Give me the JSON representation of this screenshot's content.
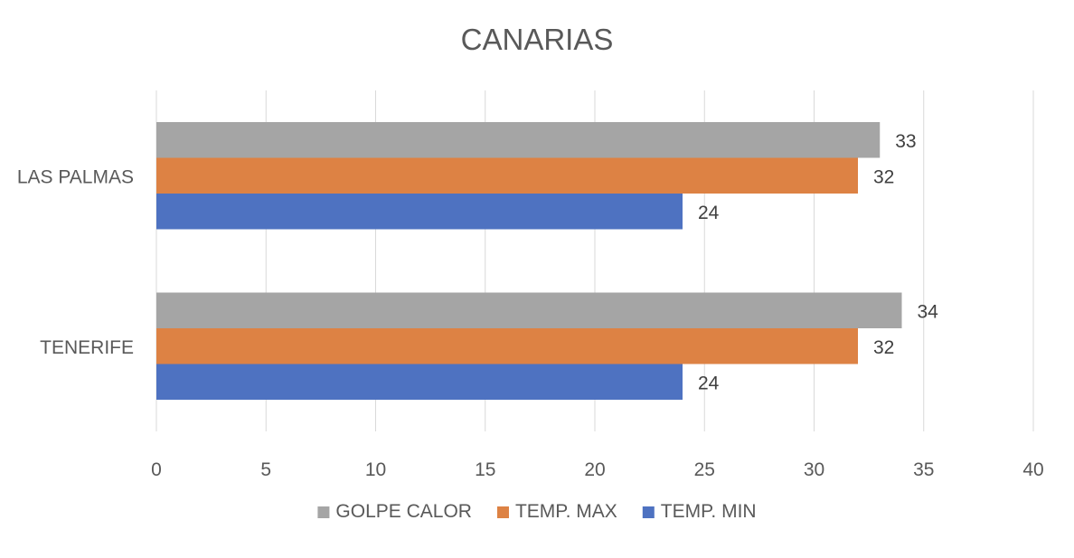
{
  "chart_data": {
    "type": "bar",
    "orientation": "horizontal",
    "title": "CANARIAS",
    "categories": [
      "LAS PALMAS",
      "TENERIFE"
    ],
    "series": [
      {
        "name": "GOLPE CALOR",
        "values": [
          33,
          34
        ],
        "color": "#A5A5A5"
      },
      {
        "name": "TEMP. MAX",
        "values": [
          32,
          32
        ],
        "color": "#DD8244"
      },
      {
        "name": "TEMP. MIN",
        "values": [
          24,
          24
        ],
        "color": "#4E72C1"
      }
    ],
    "xlim": [
      0,
      40
    ],
    "xticks": [
      "0",
      "5",
      "10",
      "15",
      "20",
      "25",
      "30",
      "35",
      "40"
    ],
    "grid": "vertical",
    "legend": "bottom",
    "data_labels": true
  }
}
